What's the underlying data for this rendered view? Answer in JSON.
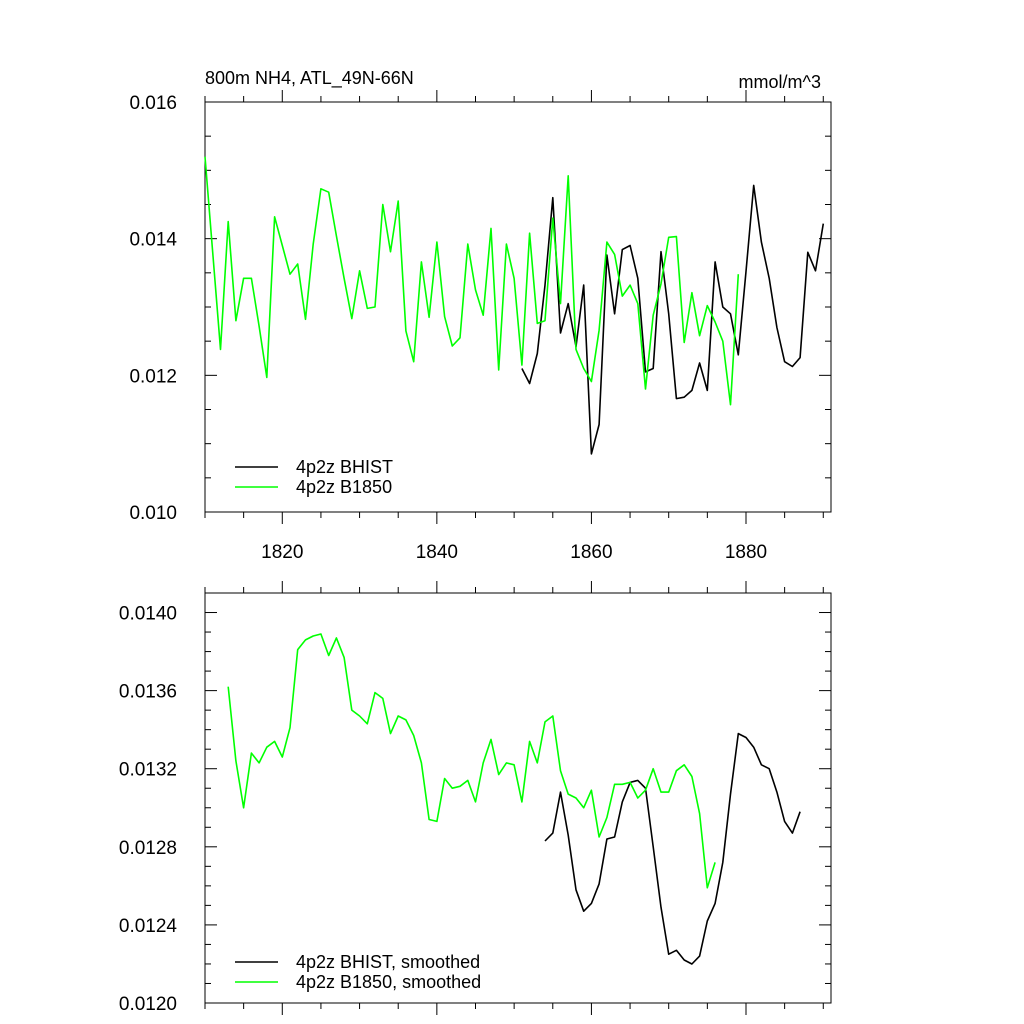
{
  "chart_data": [
    {
      "type": "line",
      "title": "800m NH4, ATL_49N-66N",
      "units": "mmol/m^3",
      "xlim": [
        1810,
        1891
      ],
      "ylim": [
        0.01,
        0.016
      ],
      "yticks": [
        0.01,
        0.012,
        0.014,
        0.016
      ],
      "ytick_labels": [
        "0.010",
        "0.012",
        "0.014",
        "0.016"
      ],
      "xticks": [
        1820,
        1840,
        1860,
        1880
      ],
      "xtick_labels": [
        "1820",
        "1840",
        "1860",
        "1880"
      ],
      "show_x_labels": true,
      "legend_position": "bottom-left",
      "series": [
        {
          "name": "4p2z BHIST",
          "color": "#000000",
          "x": [
            1851,
            1852,
            1853,
            1854,
            1855,
            1856,
            1857,
            1858,
            1859,
            1860,
            1861,
            1862,
            1863,
            1864,
            1865,
            1866,
            1867,
            1868,
            1869,
            1870,
            1871,
            1872,
            1873,
            1874,
            1875,
            1876,
            1877,
            1878,
            1879,
            1880,
            1881,
            1882,
            1883,
            1884,
            1885,
            1886,
            1887,
            1888,
            1889,
            1890
          ],
          "values": [
            0.0121,
            0.01188,
            0.01232,
            0.01332,
            0.0146,
            0.01262,
            0.01305,
            0.01242,
            0.01332,
            0.01085,
            0.01128,
            0.01376,
            0.0129,
            0.01384,
            0.0139,
            0.01342,
            0.01205,
            0.0121,
            0.01381,
            0.0129,
            0.01166,
            0.01168,
            0.01178,
            0.01218,
            0.01178,
            0.01366,
            0.013,
            0.0129,
            0.0123,
            0.01352,
            0.01478,
            0.01395,
            0.01342,
            0.0127,
            0.0122,
            0.01213,
            0.01226,
            0.0138,
            0.01353,
            0.01422
          ]
        },
        {
          "name": "4p2z B1850",
          "color": "#00ff00",
          "x": [
            1810,
            1811,
            1812,
            1813,
            1814,
            1815,
            1816,
            1817,
            1818,
            1819,
            1820,
            1821,
            1822,
            1823,
            1824,
            1825,
            1826,
            1827,
            1828,
            1829,
            1830,
            1831,
            1832,
            1833,
            1834,
            1835,
            1836,
            1837,
            1838,
            1839,
            1840,
            1841,
            1842,
            1843,
            1844,
            1845,
            1846,
            1847,
            1848,
            1849,
            1850,
            1851,
            1852,
            1853,
            1854,
            1855,
            1856,
            1857,
            1858,
            1859,
            1860,
            1861,
            1862,
            1863,
            1864,
            1865,
            1866,
            1867,
            1868,
            1869,
            1870,
            1871,
            1872,
            1873,
            1874,
            1875,
            1876,
            1877,
            1878,
            1879,
            1880
          ],
          "values": [
            0.0152,
            0.0138,
            0.01238,
            0.01425,
            0.0128,
            0.01342,
            0.01342,
            0.01272,
            0.01197,
            0.01432,
            0.0139,
            0.01348,
            0.01363,
            0.01282,
            0.01392,
            0.01473,
            0.01468,
            0.01404,
            0.01342,
            0.01283,
            0.01353,
            0.01298,
            0.013,
            0.0145,
            0.01381,
            0.01455,
            0.01265,
            0.0122,
            0.01366,
            0.01285,
            0.01395,
            0.01286,
            0.01243,
            0.01255,
            0.01392,
            0.01325,
            0.01288,
            0.01415,
            0.01208,
            0.01392,
            0.01342,
            0.01215,
            0.01408,
            0.01276,
            0.0128,
            0.0143,
            0.01305,
            0.01492,
            0.01238,
            0.0121,
            0.01191,
            0.01266,
            0.01395,
            0.01377,
            0.01316,
            0.01332,
            0.01305,
            0.0118,
            0.01288,
            0.01334,
            0.01402,
            0.01403,
            0.01248,
            0.01321,
            0.01258,
            0.01302,
            0.01278,
            0.0125,
            0.01157,
            0.01348,
            null
          ]
        }
      ]
    },
    {
      "type": "line",
      "xlim": [
        1810,
        1891
      ],
      "ylim": [
        0.012,
        0.0141
      ],
      "yticks": [
        0.012,
        0.0124,
        0.0128,
        0.0132,
        0.0136,
        0.014
      ],
      "ytick_labels": [
        "0.0120",
        "0.0124",
        "0.0128",
        "0.0132",
        "0.0136",
        "0.0140"
      ],
      "xticks": [
        1820,
        1840,
        1860,
        1880
      ],
      "xtick_labels": [],
      "show_x_labels": false,
      "legend_position": "bottom-left",
      "series": [
        {
          "name": "4p2z BHIST, smoothed",
          "color": "#000000",
          "x": [
            1854,
            1855,
            1856,
            1857,
            1858,
            1859,
            1860,
            1861,
            1862,
            1863,
            1864,
            1865,
            1866,
            1867,
            1868,
            1869,
            1870,
            1871,
            1872,
            1873,
            1874,
            1875,
            1876,
            1877,
            1878,
            1879,
            1880,
            1881,
            1882,
            1883,
            1884,
            1885,
            1886,
            1887
          ],
          "values": [
            0.01283,
            0.01287,
            0.01308,
            0.01286,
            0.01258,
            0.01247,
            0.01251,
            0.01261,
            0.01284,
            0.01285,
            0.01303,
            0.01313,
            0.01314,
            0.0131,
            0.0128,
            0.01249,
            0.01225,
            0.01227,
            0.01222,
            0.0122,
            0.01224,
            0.01242,
            0.01251,
            0.01272,
            0.01307,
            0.01338,
            0.01336,
            0.01331,
            0.01322,
            0.0132,
            0.01308,
            0.01293,
            0.01287,
            0.01298
          ]
        },
        {
          "name": "4p2z B1850, smoothed",
          "color": "#00ff00",
          "x": [
            1813,
            1814,
            1815,
            1816,
            1817,
            1818,
            1819,
            1820,
            1821,
            1822,
            1823,
            1824,
            1825,
            1826,
            1827,
            1828,
            1829,
            1830,
            1831,
            1832,
            1833,
            1834,
            1835,
            1836,
            1837,
            1838,
            1839,
            1840,
            1841,
            1842,
            1843,
            1844,
            1845,
            1846,
            1847,
            1848,
            1849,
            1850,
            1851,
            1852,
            1853,
            1854,
            1855,
            1856,
            1857,
            1858,
            1859,
            1860,
            1861,
            1862,
            1863,
            1864,
            1865,
            1866,
            1867,
            1868,
            1869,
            1870,
            1871,
            1872,
            1873,
            1874,
            1875,
            1876,
            1877
          ],
          "values": [
            0.01362,
            0.01324,
            0.013,
            0.01328,
            0.01323,
            0.01331,
            0.01334,
            0.01326,
            0.01341,
            0.01381,
            0.01386,
            0.01388,
            0.01389,
            0.01378,
            0.01387,
            0.01377,
            0.0135,
            0.01347,
            0.01343,
            0.01359,
            0.01356,
            0.01338,
            0.01347,
            0.01345,
            0.01337,
            0.01323,
            0.01294,
            0.01293,
            0.01315,
            0.0131,
            0.01311,
            0.01314,
            0.01303,
            0.01323,
            0.01335,
            0.01317,
            0.01323,
            0.01322,
            0.01303,
            0.01334,
            0.01323,
            0.01344,
            0.01347,
            0.01319,
            0.01307,
            0.01305,
            0.013,
            0.01309,
            0.01285,
            0.01295,
            0.01312,
            0.01312,
            0.01313,
            0.01305,
            0.01309,
            0.0132,
            0.01308,
            0.01308,
            0.01319,
            0.01322,
            0.01316,
            0.01297,
            0.01259,
            0.01272,
            null
          ]
        }
      ]
    }
  ]
}
